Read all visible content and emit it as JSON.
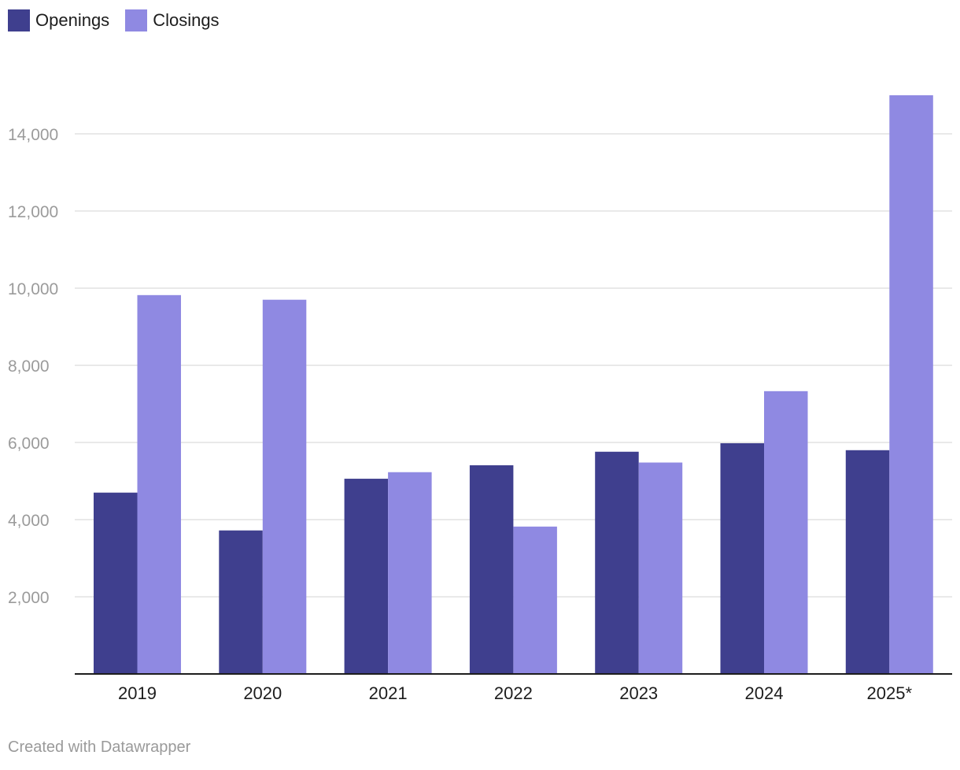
{
  "legend": {
    "items": [
      {
        "label": "Openings",
        "color": "#3f3f8e"
      },
      {
        "label": "Closings",
        "color": "#8f89e2"
      }
    ]
  },
  "credit": "Created with Datawrapper",
  "chart_data": {
    "type": "bar",
    "title": "",
    "xlabel": "",
    "ylabel": "",
    "categories": [
      "2019",
      "2020",
      "2021",
      "2022",
      "2023",
      "2024",
      "2025*"
    ],
    "series": [
      {
        "name": "Openings",
        "color": "#3f3f8e",
        "values": [
          4700,
          3720,
          5060,
          5410,
          5760,
          5980,
          5800
        ]
      },
      {
        "name": "Closings",
        "color": "#8f89e2",
        "values": [
          9820,
          9700,
          5230,
          3820,
          5480,
          7330,
          15000
        ]
      }
    ],
    "ylim": [
      0,
      15000
    ],
    "yticks": [
      2000,
      4000,
      6000,
      8000,
      10000,
      12000,
      14000
    ],
    "ytick_labels": [
      "2,000",
      "4,000",
      "6,000",
      "8,000",
      "10,000",
      "12,000",
      "14,000"
    ],
    "grid": true,
    "legend_position": "top-left"
  }
}
